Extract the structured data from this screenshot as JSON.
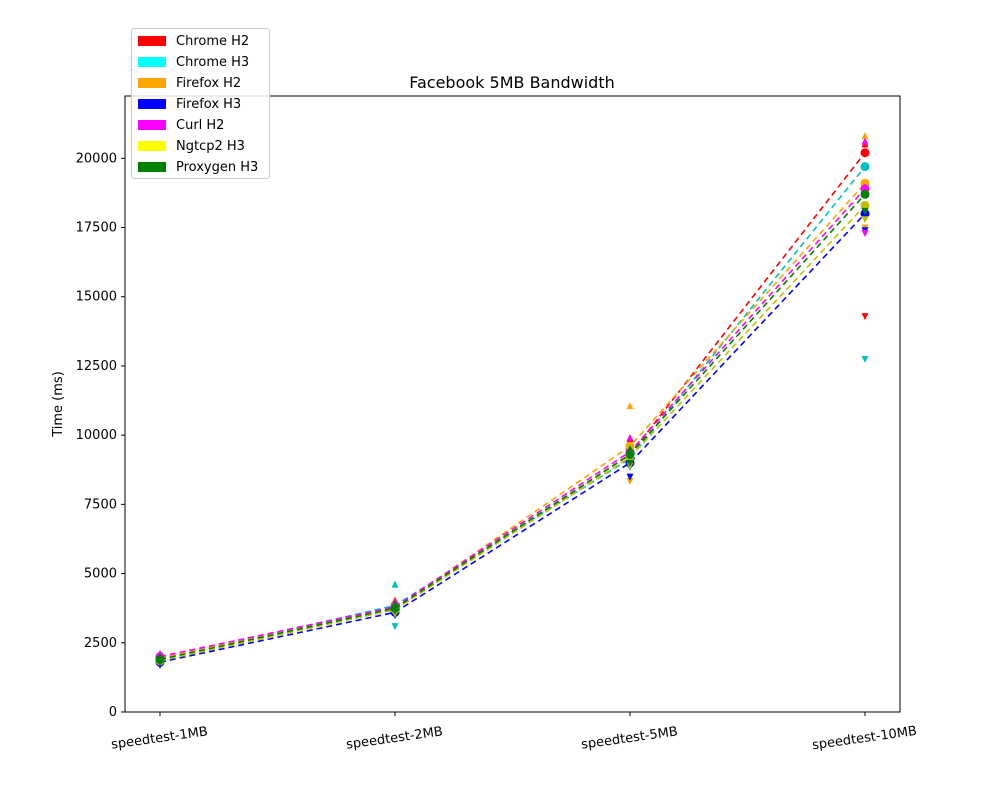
{
  "chart_data": {
    "type": "line",
    "title": "Facebook 5MB Bandwidth",
    "xlabel": "",
    "ylabel": "Time (ms)",
    "categories": [
      "speedtest-1MB",
      "speedtest-2MB",
      "speedtest-5MB",
      "speedtest-10MB"
    ],
    "ylim": [
      0,
      22250
    ],
    "yticks": [
      0,
      2500,
      5000,
      7500,
      10000,
      12500,
      15000,
      17500,
      20000
    ],
    "ytick_labels": [
      "0",
      "2500",
      "5000",
      "7500",
      "10000",
      "12500",
      "15000",
      "17500",
      "20000"
    ],
    "grid": false,
    "legend_position": "top-left",
    "series": [
      {
        "name": "Chrome H2",
        "color": "#ff0000",
        "values": [
          1950,
          3700,
          9300,
          20200
        ],
        "max": [
          2050,
          3900,
          9850,
          20500
        ],
        "min": [
          1850,
          3550,
          8900,
          14300
        ]
      },
      {
        "name": "Chrome H3",
        "color": "#00c0c0",
        "swatch_color": "#00ffff",
        "values": [
          1900,
          3850,
          9150,
          19700
        ],
        "max": [
          2000,
          4600,
          9500,
          19700
        ],
        "min": [
          1800,
          3100,
          8850,
          12750
        ]
      },
      {
        "name": "Firefox H2",
        "color": "#ffa500",
        "values": [
          1950,
          3750,
          9600,
          19100
        ],
        "max": [
          2100,
          4050,
          11050,
          20800
        ],
        "min": [
          1800,
          3550,
          8350,
          17500
        ]
      },
      {
        "name": "Firefox H3",
        "color": "#0000ff",
        "values": [
          1800,
          3600,
          9000,
          18000
        ],
        "max": [
          1900,
          3750,
          9300,
          18200
        ],
        "min": [
          1700,
          3500,
          8500,
          17400
        ]
      },
      {
        "name": "Curl H2",
        "color": "#ff00ff",
        "values": [
          2000,
          3800,
          9400,
          18900
        ],
        "max": [
          2100,
          4000,
          9900,
          20600
        ],
        "min": [
          1900,
          3600,
          9100,
          17300
        ]
      },
      {
        "name": "Ngtcp2 H3",
        "color": "#c0c000",
        "swatch_color": "#ffff00",
        "values": [
          1850,
          3700,
          9200,
          18300
        ],
        "max": [
          1950,
          3900,
          9600,
          18300
        ],
        "min": [
          1800,
          3550,
          8900,
          17800
        ]
      },
      {
        "name": "Proxygen H3",
        "color": "#008000",
        "values": [
          1900,
          3750,
          9300,
          18700
        ],
        "max": [
          2000,
          3900,
          9500,
          18700
        ],
        "min": [
          1800,
          3650,
          9000,
          18100
        ]
      }
    ]
  }
}
